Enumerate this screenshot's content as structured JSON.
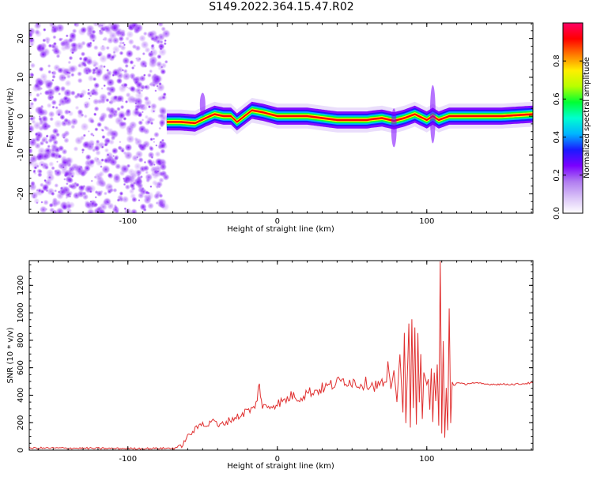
{
  "figure": {
    "title": "S149.2022.364.15.47.R02"
  },
  "chart_data": [
    {
      "type": "heatmap",
      "title": "S149.2022.364.15.47.R02",
      "xlabel": "Height of straight line (km)",
      "ylabel": "Frequency (Hz)",
      "xlim": [
        -166,
        171
      ],
      "ylim": [
        -25,
        24
      ],
      "x_ticks": [
        -100,
        0,
        100
      ],
      "y_ticks": [
        -20,
        -10,
        0,
        10,
        20
      ],
      "noise_region_x": [
        -166,
        -74
      ],
      "ridge": {
        "x": [
          -74,
          -65,
          -55,
          -48,
          -42,
          -36,
          -31,
          -27,
          -22,
          -17,
          -10,
          0,
          20,
          40,
          60,
          63,
          70,
          78,
          85,
          92,
          100,
          104,
          108,
          115,
          130,
          150,
          171
        ],
        "freq": [
          -1.5,
          -1.5,
          -1.8,
          -0.5,
          0.5,
          0,
          0,
          -1.5,
          0,
          1.5,
          1,
          0,
          0,
          -1,
          -1,
          -0.8,
          -0.5,
          -1.2,
          -0.5,
          0.5,
          -1,
          0,
          -1,
          0,
          0,
          0,
          0.5
        ]
      },
      "colorbar": {
        "label": "Normalized spectral amplitude",
        "range": [
          0.0,
          1.0
        ],
        "ticks": [
          0.0,
          0.2,
          0.4,
          0.6,
          0.8
        ],
        "tick_labels": [
          "0.0",
          "0.2",
          "0.4",
          "0.6",
          "0.8"
        ],
        "colormap": [
          "#ffffff",
          "#d9c2f7",
          "#b07cf0",
          "#7a00ff",
          "#1a1aff",
          "#00b5ff",
          "#00ffd0",
          "#00ff33",
          "#b8ff00",
          "#ffef00",
          "#ff7a00",
          "#ff0000",
          "#ff0066"
        ]
      }
    },
    {
      "type": "line",
      "xlabel": "Height of straight line (km)",
      "ylabel": "SNR (10 * v/v)",
      "xlim": [
        -166,
        171
      ],
      "ylim": [
        0,
        1380
      ],
      "x_ticks": [
        -100,
        0,
        100
      ],
      "y_ticks": [
        0,
        200,
        400,
        600,
        800,
        1000,
        1200
      ],
      "color": "#e03030",
      "series": [
        {
          "x": [
            -166,
            -140,
            -110,
            -90,
            -70,
            -64,
            -60,
            -55,
            -50,
            -46,
            -43,
            -40,
            -35,
            -30,
            -25,
            -20,
            -15,
            -12,
            -10,
            -5,
            0,
            5,
            10,
            15,
            20,
            25,
            30,
            35,
            40,
            45,
            50,
            55,
            60,
            65,
            70,
            73,
            74,
            76,
            78,
            80,
            82,
            84,
            85,
            86,
            88,
            89,
            90,
            91,
            92,
            93,
            94,
            95,
            96,
            97,
            98,
            100,
            101,
            102,
            103,
            104,
            105,
            106,
            107,
            108,
            109,
            110,
            111,
            112,
            113,
            114,
            115,
            116,
            117,
            118,
            120,
            125,
            130,
            140,
            150,
            160,
            171
          ],
          "y": [
            15,
            15,
            12,
            12,
            14,
            30,
            100,
            150,
            200,
            180,
            240,
            170,
            200,
            230,
            250,
            290,
            300,
            480,
            310,
            320,
            340,
            360,
            400,
            380,
            420,
            430,
            450,
            470,
            490,
            510,
            500,
            480,
            490,
            470,
            480,
            490,
            640,
            450,
            580,
            350,
            700,
            280,
            860,
            200,
            920,
            160,
            960,
            300,
            900,
            180,
            850,
            350,
            700,
            220,
            560,
            480,
            520,
            300,
            600,
            210,
            560,
            350,
            620,
            180,
            1370,
            120,
            800,
            90,
            450,
            140,
            1030,
            200,
            500,
            470,
            490,
            480,
            490,
            480,
            480,
            480,
            490
          ]
        }
      ]
    }
  ]
}
